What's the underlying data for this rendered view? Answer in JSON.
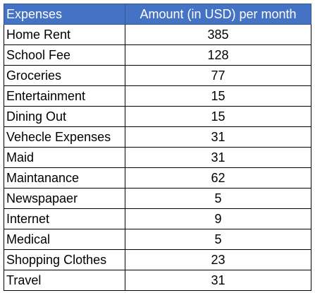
{
  "table": {
    "header_color": "#4472c4",
    "columns": [
      "Expenses",
      "Amount (in USD) per month"
    ],
    "rows": [
      {
        "expense": "Home Rent",
        "amount": "385"
      },
      {
        "expense": "School Fee",
        "amount": "128"
      },
      {
        "expense": "Groceries",
        "amount": "77"
      },
      {
        "expense": "Entertainment",
        "amount": "15"
      },
      {
        "expense": "Dining Out",
        "amount": "15"
      },
      {
        "expense": "Vehecle Expenses",
        "amount": "31"
      },
      {
        "expense": "Maid",
        "amount": "31"
      },
      {
        "expense": "Maintanance",
        "amount": "62"
      },
      {
        "expense": "Newspapaer",
        "amount": "5"
      },
      {
        "expense": "Internet",
        "amount": "9"
      },
      {
        "expense": "Medical",
        "amount": "5"
      },
      {
        "expense": "Shopping Clothes",
        "amount": "23"
      },
      {
        "expense": "Travel",
        "amount": "31"
      }
    ]
  }
}
